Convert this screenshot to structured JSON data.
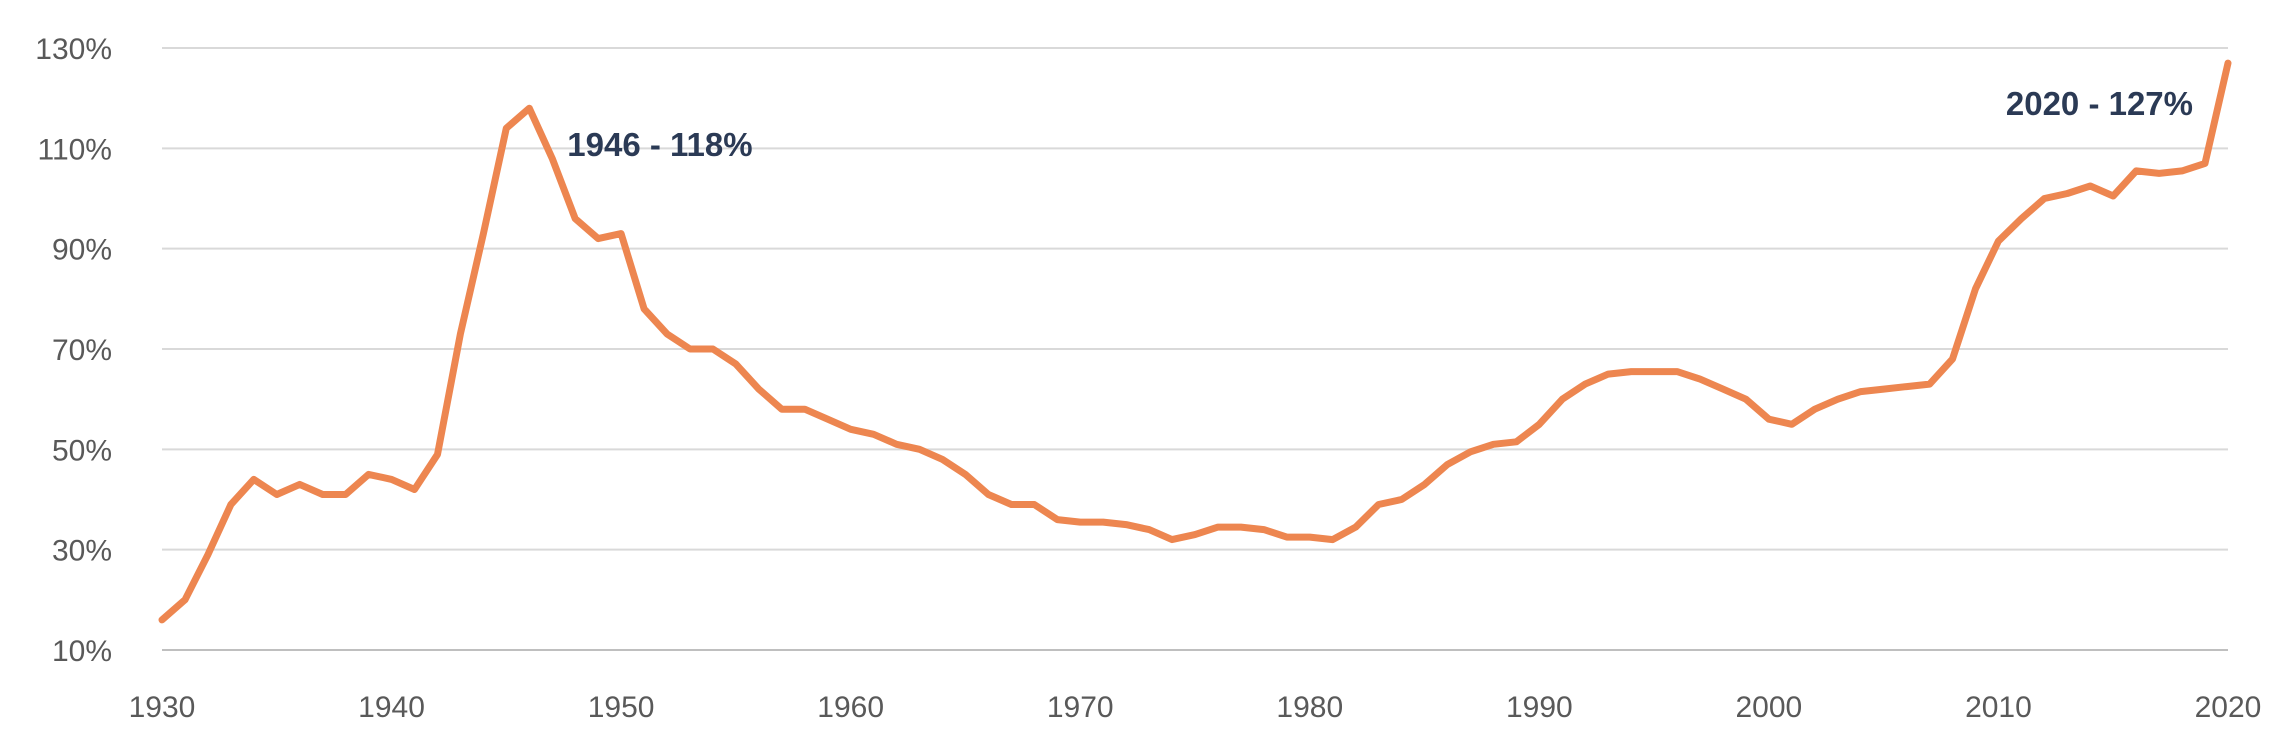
{
  "chart_data": {
    "type": "line",
    "title": "",
    "xlabel": "",
    "ylabel": "",
    "xlim": [
      1930,
      2020
    ],
    "ylim": [
      10,
      130
    ],
    "x_ticks": [
      1930,
      1940,
      1950,
      1960,
      1970,
      1980,
      1990,
      2000,
      2010,
      2020
    ],
    "x_tick_labels": [
      "1930",
      "1940",
      "1950",
      "1960",
      "1970",
      "1980",
      "1990",
      "2000",
      "2010",
      "2020"
    ],
    "y_ticks": [
      10,
      30,
      50,
      70,
      90,
      110,
      130
    ],
    "y_tick_labels": [
      "10%",
      "30%",
      "50%",
      "70%",
      "90%",
      "110%",
      "130%"
    ],
    "grid": true,
    "legend": "none",
    "line_color": "#ed8650",
    "annotation_color": "#2b3a55",
    "series": [
      {
        "x": [
          1930,
          1931,
          1932,
          1933,
          1934,
          1935,
          1936,
          1937,
          1938,
          1939,
          1940,
          1941,
          1942,
          1943,
          1944,
          1945,
          1946,
          1947,
          1948,
          1949,
          1950,
          1951,
          1952,
          1953,
          1954,
          1955,
          1956,
          1957,
          1958,
          1959,
          1960,
          1961,
          1962,
          1963,
          1964,
          1965,
          1966,
          1967,
          1968,
          1969,
          1970,
          1971,
          1972,
          1973,
          1974,
          1975,
          1976,
          1977,
          1978,
          1979,
          1980,
          1981,
          1982,
          1983,
          1984,
          1985,
          1986,
          1987,
          1988,
          1989,
          1990,
          1991,
          1992,
          1993,
          1994,
          1995,
          1996,
          1997,
          1998,
          1999,
          2000,
          2001,
          2002,
          2003,
          2004,
          2005,
          2006,
          2007,
          2008,
          2009,
          2010,
          2011,
          2012,
          2013,
          2014,
          2015,
          2016,
          2017,
          2018,
          2019,
          2020
        ],
        "values": [
          16,
          20,
          29,
          39,
          44,
          41,
          43,
          41,
          41,
          45,
          44,
          42,
          49,
          73,
          93,
          114,
          118,
          108,
          96,
          92,
          93,
          78,
          73,
          70,
          70,
          67,
          62,
          58,
          58,
          56,
          54,
          53,
          51,
          50,
          48,
          45,
          41,
          39,
          39,
          36,
          35.5,
          35.5,
          35,
          34,
          32,
          33,
          34.5,
          34.5,
          34,
          32.5,
          32.5,
          32,
          34.5,
          39,
          40,
          43,
          47,
          49.5,
          51,
          51.5,
          55,
          60,
          63,
          65,
          65.5,
          65.5,
          65.5,
          64,
          62,
          60,
          56,
          55,
          58,
          60,
          61.5,
          62,
          62.5,
          63,
          68,
          82,
          91.5,
          96,
          100,
          101,
          102.5,
          100.5,
          105.5,
          105,
          105.5,
          107,
          127
        ]
      }
    ],
    "annotations": [
      {
        "x": 1946,
        "y": 118,
        "text": "1946 - 118%"
      },
      {
        "x": 2020,
        "y": 127,
        "text": "2020 - 127%"
      }
    ]
  }
}
